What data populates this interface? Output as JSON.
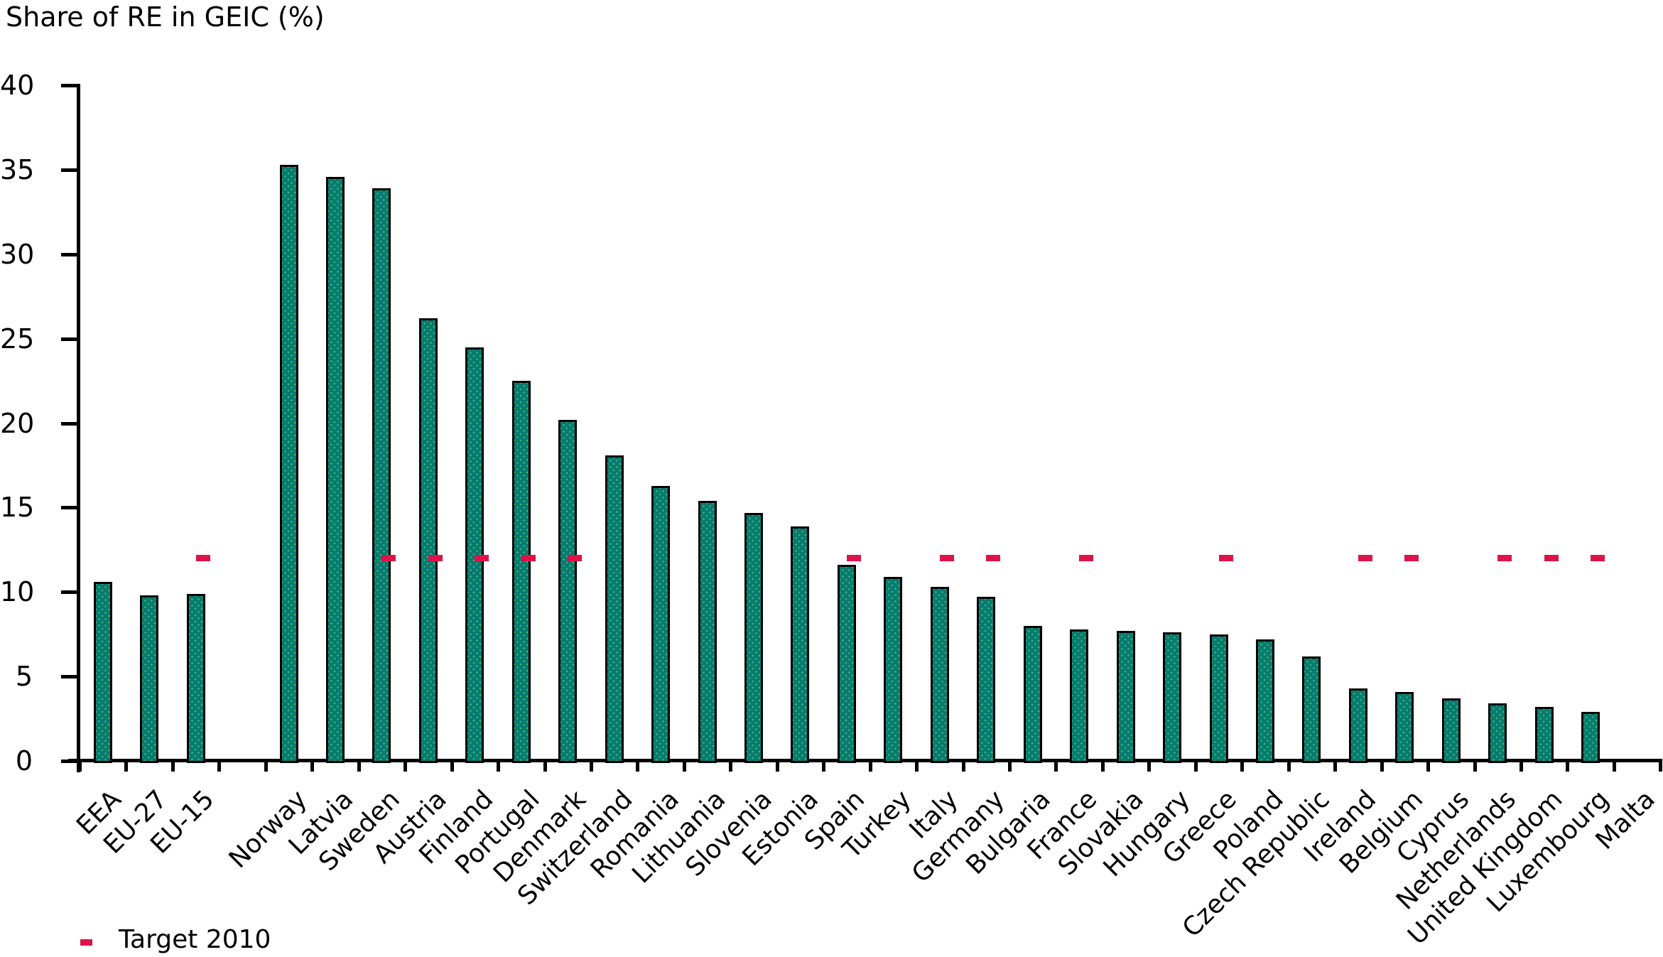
{
  "title": "Share of RE in GEIC (%)",
  "legend": {
    "target_label": "Target 2010"
  },
  "colors": {
    "bar_fill": "#077b70",
    "bar_dot": "#3eb474",
    "bar_border": "#000000",
    "target_dash": "#e5134d",
    "axis": "#000000",
    "background": "#ffffff"
  },
  "chart_data": {
    "type": "bar",
    "title": "Share of RE in GEIC (%)",
    "ylabel": "Share of RE in GEIC (%)",
    "xlabel": "",
    "ylim": [
      0,
      40
    ],
    "y_ticks": [
      0,
      5,
      10,
      15,
      20,
      25,
      30,
      35,
      40
    ],
    "grid": false,
    "legend_position": "bottom-left",
    "legend_entries": [
      "Target 2010"
    ],
    "target_2010_value": 12,
    "spacer_after_category_index": 2,
    "categories": [
      "EEA",
      "EU-27",
      "EU-15",
      "Norway",
      "Latvia",
      "Sweden",
      "Austria",
      "Finland",
      "Portugal",
      "Denmark",
      "Switzerland",
      "Romania",
      "Lithuania",
      "Slovenia",
      "Estonia",
      "Spain",
      "Turkey",
      "Italy",
      "Germany",
      "Bulgaria",
      "France",
      "Slovakia",
      "Hungary",
      "Greece",
      "Poland",
      "Czech Republic",
      "Ireland",
      "Belgium",
      "Cyprus",
      "Netherlands",
      "United Kingdom",
      "Luxembourg",
      "Malta"
    ],
    "values": [
      10.6,
      9.8,
      9.9,
      35.3,
      34.6,
      33.9,
      26.2,
      24.5,
      22.5,
      20.2,
      18.1,
      16.3,
      15.4,
      14.7,
      13.9,
      11.6,
      10.9,
      10.3,
      9.7,
      8.0,
      7.8,
      7.7,
      7.6,
      7.5,
      7.2,
      6.2,
      4.3,
      4.1,
      3.7,
      3.4,
      3.2,
      2.9,
      0
    ],
    "targets_2010": [
      null,
      null,
      12,
      null,
      null,
      12,
      12,
      12,
      12,
      12,
      null,
      null,
      null,
      null,
      null,
      12,
      null,
      12,
      12,
      null,
      12,
      null,
      null,
      12,
      null,
      null,
      12,
      12,
      null,
      12,
      12,
      12,
      null
    ]
  }
}
